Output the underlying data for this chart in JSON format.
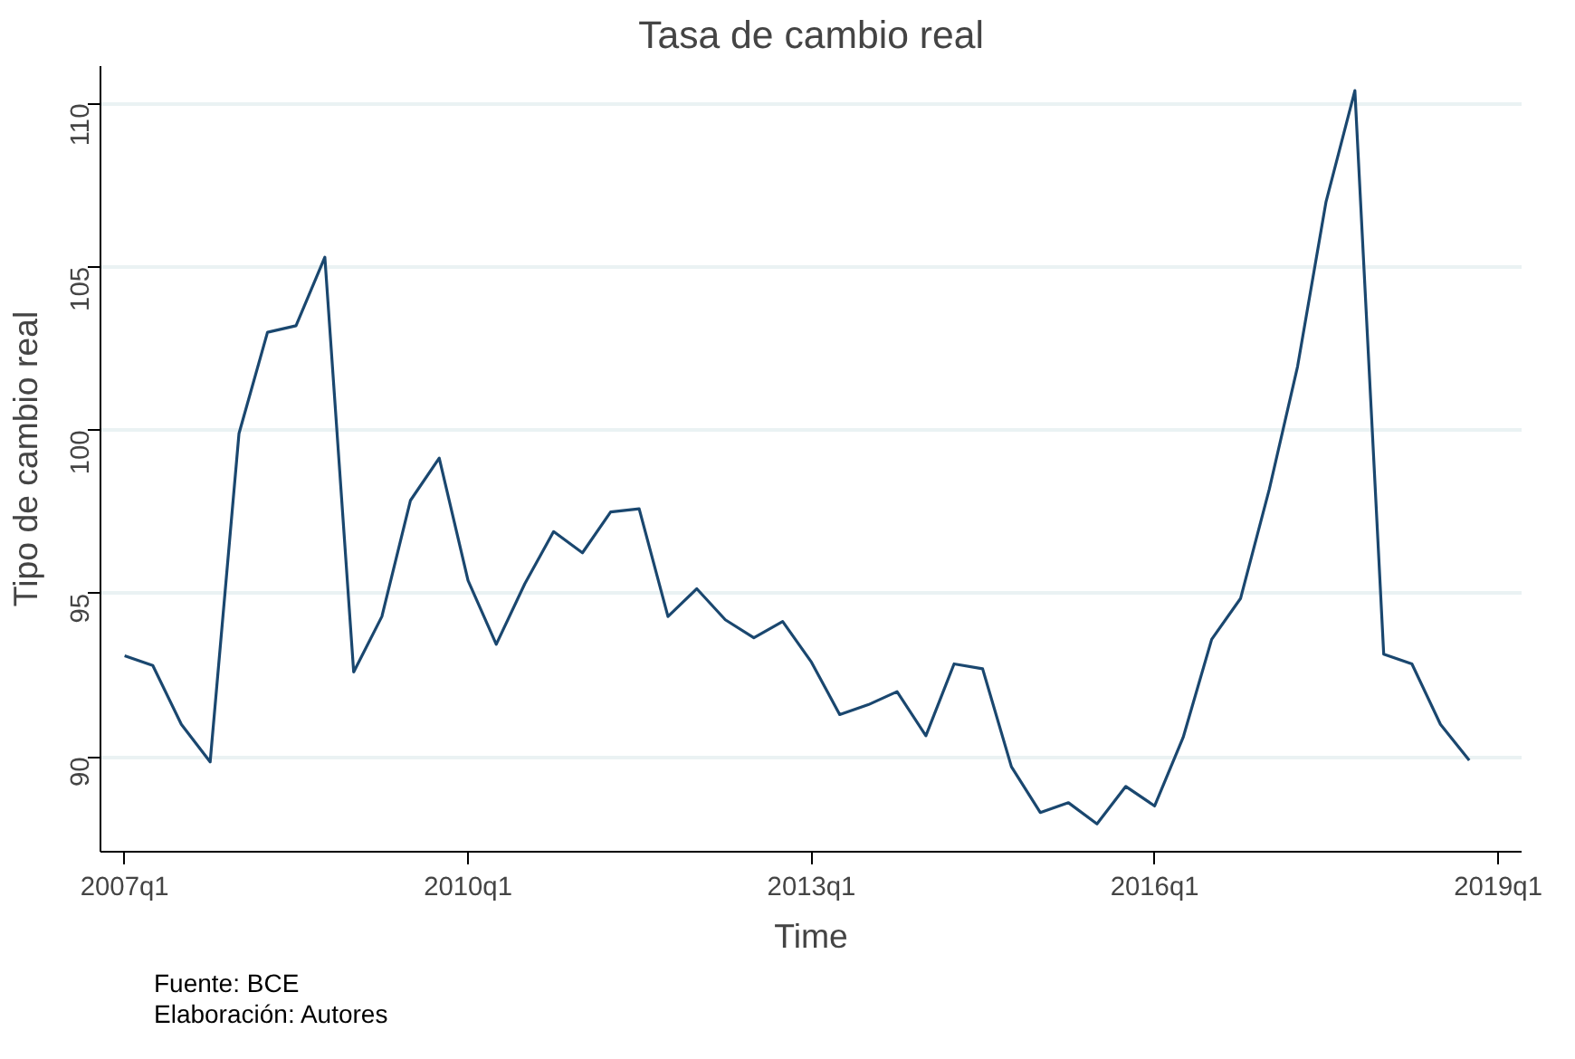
{
  "chart_data": {
    "type": "line",
    "title": "Tasa de cambio real",
    "xlabel": "Time",
    "ylabel": "Tipo de cambio real",
    "annotations": [
      "Fuente: BCE",
      "Elaboración: Autores"
    ],
    "x": [
      "2007-01",
      "2007-04",
      "2007-07",
      "2007-10",
      "2008-01",
      "2008-04",
      "2008-07",
      "2008-10",
      "2009-01",
      "2009-04",
      "2009-07",
      "2009-10",
      "2010-01",
      "2010-04",
      "2010-07",
      "2010-10",
      "2011-01",
      "2011-04",
      "2011-07",
      "2011-10",
      "2012-01",
      "2012-04",
      "2012-07",
      "2012-10",
      "2013-01",
      "2013-04",
      "2013-07",
      "2013-10",
      "2014-01",
      "2014-04",
      "2014-07",
      "2014-10",
      "2015-01",
      "2015-04",
      "2015-07",
      "2015-10",
      "2016-01",
      "2016-04",
      "2016-07",
      "2016-10",
      "2017-01",
      "2017-04",
      "2017-07",
      "2017-10",
      "2018-01",
      "2018-04",
      "2018-07",
      "2018-10"
    ],
    "series": [
      {
        "color": "#1a476f",
        "values": [
          93.1,
          92.8,
          91.0,
          89.85,
          99.9,
          103.0,
          103.2,
          105.3,
          92.6,
          94.3,
          97.85,
          99.15,
          95.4,
          93.45,
          95.3,
          96.9,
          96.25,
          97.5,
          97.6,
          94.3,
          95.15,
          94.2,
          93.65,
          94.15,
          92.9,
          91.3,
          91.6,
          92.0,
          90.65,
          92.85,
          92.7,
          89.7,
          88.3,
          88.6,
          87.95,
          89.1,
          88.5,
          90.6,
          93.6,
          94.85,
          98.2,
          101.95,
          107.0,
          110.4,
          93.15,
          92.85,
          91.0,
          89.9
        ]
      }
    ],
    "xlim": [
      "2006-10-16",
      "2019-03-17"
    ],
    "ylim": [
      87.1,
      111.15
    ],
    "xticks": [
      {
        "value": "2007-01",
        "label": "2007q1"
      },
      {
        "value": "2010-01",
        "label": "2010q1"
      },
      {
        "value": "2013-01",
        "label": "2013q1"
      },
      {
        "value": "2016-01",
        "label": "2016q1"
      },
      {
        "value": "2019-01",
        "label": "2019q1"
      }
    ],
    "yticks": [
      90,
      95,
      100,
      105,
      110
    ],
    "grid": "y"
  }
}
